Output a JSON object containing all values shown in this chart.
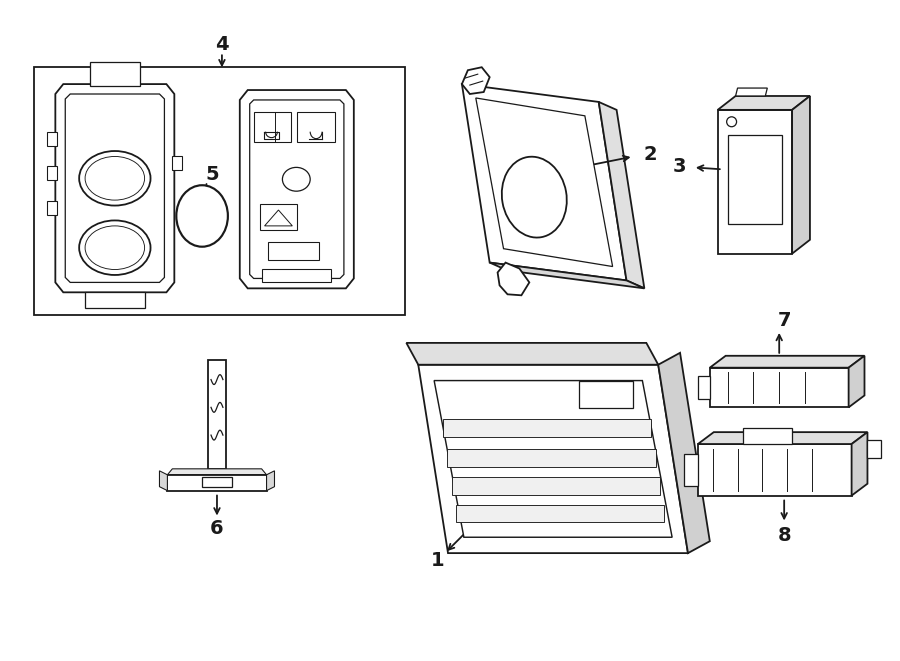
{
  "bg_color": "#ffffff",
  "line_color": "#1a1a1a",
  "figsize": [
    9.0,
    6.61
  ],
  "dpi": 100,
  "components": {
    "layout": "top-left=keyfobs(4,5), top-center=receiver(2), top-right=smallreceiver(3), bottom-left=antenna(6), bottom-center=module(1), bottom-right=connectors(7,8)"
  }
}
